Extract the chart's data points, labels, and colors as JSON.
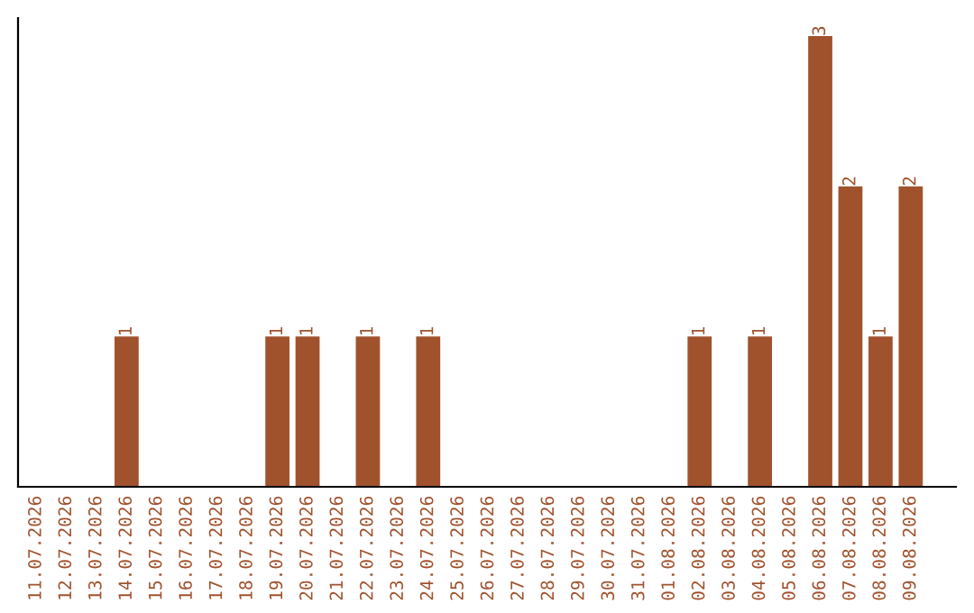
{
  "chart_data": {
    "type": "bar",
    "categories": [
      "11.07.2026",
      "12.07.2026",
      "13.07.2026",
      "14.07.2026",
      "15.07.2026",
      "16.07.2026",
      "17.07.2026",
      "18.07.2026",
      "19.07.2026",
      "20.07.2026",
      "21.07.2026",
      "22.07.2026",
      "23.07.2026",
      "24.07.2026",
      "25.07.2026",
      "26.07.2026",
      "27.07.2026",
      "28.07.2026",
      "29.07.2026",
      "30.07.2026",
      "31.07.2026",
      "01.08.2026",
      "02.08.2026",
      "03.08.2026",
      "04.08.2026",
      "05.08.2026",
      "06.08.2026",
      "07.08.2026",
      "08.08.2026",
      "09.08.2026"
    ],
    "values": [
      0,
      0,
      0,
      1,
      0,
      0,
      0,
      0,
      1,
      1,
      0,
      1,
      0,
      1,
      0,
      0,
      0,
      0,
      0,
      0,
      0,
      0,
      1,
      0,
      1,
      0,
      3,
      2,
      1,
      2
    ],
    "value_labels": [
      null,
      null,
      null,
      "1",
      null,
      null,
      null,
      null,
      "1",
      "1",
      null,
      "1",
      null,
      "1",
      null,
      null,
      null,
      null,
      null,
      null,
      null,
      null,
      "1",
      null,
      "1",
      null,
      "3",
      "2",
      "1",
      "2"
    ],
    "color": "#a0522d",
    "tick_labels": "x",
    "grid": false,
    "legend": false
  }
}
